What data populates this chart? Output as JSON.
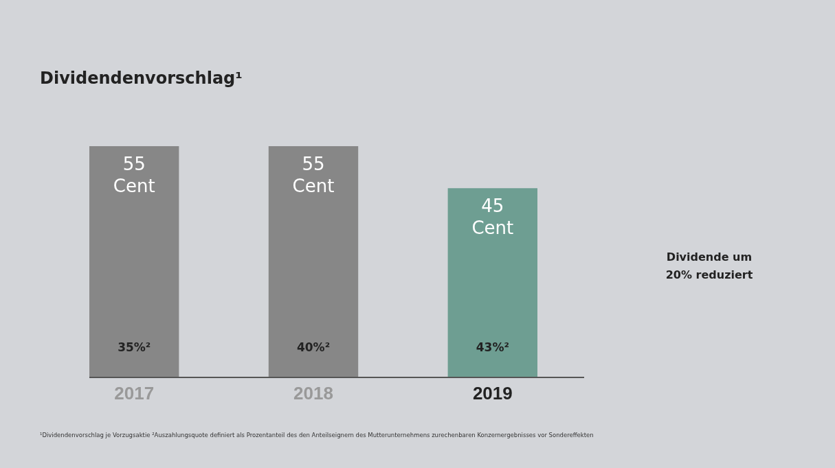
{
  "chart_data": {
    "type": "bar",
    "title": "Dividendenvorschlag¹",
    "categories": [
      "2017",
      "2018",
      "2019"
    ],
    "values": [
      55,
      55,
      45
    ],
    "colors": [
      "#878787",
      "#878787",
      "#6e9e92"
    ],
    "value_labels": [
      "55 Cent",
      "55 Cent",
      "45 Cent"
    ],
    "annotations": [
      "35%²",
      "40%²",
      "43%²",
      "Dividende um 20% reduziert",
      "¹Dividendenvorschlag je Vorzugsaktie ²Auszahlungsquote definiert als Prozentanteil des den Anteilseignern des Mutterunternehmens zurechenbaren Konzernergebnisses vor Sondereffekten"
    ]
  }
}
